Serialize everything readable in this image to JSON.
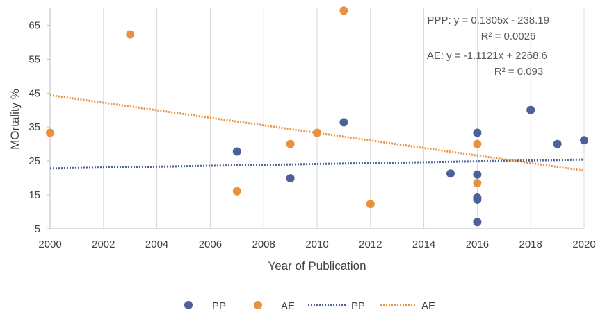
{
  "chart_data": {
    "type": "scatter",
    "title": "",
    "xlabel": "Year of Publication",
    "ylabel": "MOrtality %",
    "xlim": [
      2000,
      2020
    ],
    "ylim": [
      5,
      70
    ],
    "xticks": [
      2000,
      2002,
      2004,
      2006,
      2008,
      2010,
      2012,
      2014,
      2016,
      2018,
      2020
    ],
    "yticks": [
      5,
      15,
      25,
      35,
      45,
      55,
      65
    ],
    "grid": "vertical",
    "series": [
      {
        "name": "PP",
        "color": "#4a6199",
        "points": [
          [
            2007,
            27.8
          ],
          [
            2009,
            19.9
          ],
          [
            2011,
            36.4
          ],
          [
            2015,
            21.3
          ],
          [
            2016,
            33.3
          ],
          [
            2016,
            21.0
          ],
          [
            2016,
            14.2
          ],
          [
            2016,
            13.6
          ],
          [
            2016,
            7.0
          ],
          [
            2018,
            40.0
          ],
          [
            2019,
            30.0
          ],
          [
            2020,
            31.1
          ]
        ]
      },
      {
        "name": "AE",
        "color": "#e8923f",
        "points": [
          [
            2000,
            33.3
          ],
          [
            2003,
            62.3
          ],
          [
            2007,
            16.1
          ],
          [
            2009,
            30.0
          ],
          [
            2010,
            33.3
          ],
          [
            2011,
            69.3
          ],
          [
            2012,
            12.3
          ],
          [
            2016,
            30.0
          ],
          [
            2016,
            18.5
          ]
        ]
      }
    ],
    "trendlines": [
      {
        "name": "PP",
        "color": "#4a6199",
        "style": "dotted",
        "slope": 0.1305,
        "intercept": -238.19
      },
      {
        "name": "AE",
        "color": "#e8923f",
        "style": "dotted",
        "slope": -1.1121,
        "intercept": 2268.6
      }
    ],
    "annotations": {
      "ppp_eq": "PPP: y = 0.1305x - 238.19",
      "ppp_r2": "R² = 0.0026",
      "ae_eq": "AE: y = -1.1121x + 2268.6",
      "ae_r2": "R² = 0.093"
    },
    "legend": {
      "placement": "bottom",
      "items": [
        {
          "label": "PP",
          "kind": "marker",
          "color": "#4a6199"
        },
        {
          "label": "AE",
          "kind": "marker",
          "color": "#e8923f"
        },
        {
          "label": "PP",
          "kind": "line",
          "color": "#4a6199"
        },
        {
          "label": "AE",
          "kind": "line",
          "color": "#e8923f"
        }
      ]
    }
  }
}
